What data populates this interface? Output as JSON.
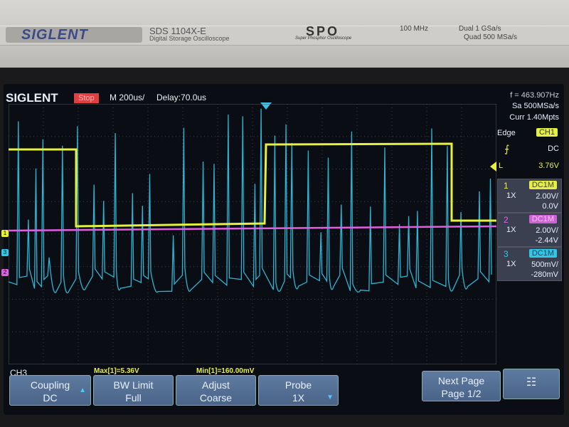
{
  "bezel": {
    "brand": "SIGLENT",
    "model": "SDS 1104X-E",
    "model_desc": "Digital Storage Oscilloscope",
    "spo_logo": "SPO",
    "spo_desc": "Super Phosphor Oscilloscope",
    "bandwidth": "100 MHz",
    "rate_dual": "Dual  1 GSa/s",
    "rate_quad": "Quad  500 MSa/s"
  },
  "top": {
    "brand": "SIGLENT",
    "status": "Stop",
    "timebase": "M 200us/",
    "delay": "Delay:70.0us"
  },
  "info": {
    "freq": "f = 463.907Hz",
    "sample_rate": "Sa 500MSa/s",
    "curr": "Curr 1.40Mpts",
    "trigger_type": "Edge",
    "trigger_source": "CH1",
    "trigger_coupling": "DC",
    "trigger_level_label": "L",
    "trigger_level": "3.76V"
  },
  "channels": [
    {
      "num": "1",
      "coupling": "DC1M",
      "probe": "1X",
      "scale": "2.00V/",
      "offset": "0.0V",
      "color": "#e6f040"
    },
    {
      "num": "2",
      "coupling": "DC1M",
      "probe": "1X",
      "scale": "2.00V/",
      "offset": "-2.44V",
      "color": "#e060e0"
    },
    {
      "num": "3",
      "coupling": "DC1M",
      "probe": "1X",
      "scale": "500mV/",
      "offset": "-280mV",
      "color": "#30c8e8"
    }
  ],
  "channel_markers": [
    "1",
    "2",
    "3"
  ],
  "bottom": {
    "menu_title": "CH3",
    "max": "Max[1]=5.36V",
    "min": "Min[1]=160.00mV"
  },
  "softkeys": [
    {
      "line1": "Coupling",
      "line2": "DC"
    },
    {
      "line1": "BW Limit",
      "line2": "Full"
    },
    {
      "line1": "Adjust",
      "line2": "Coarse"
    },
    {
      "line1": "Probe",
      "line2": "1X"
    },
    {
      "line1": "Next Page",
      "line2": "Page 1/2"
    }
  ],
  "icons": {
    "network": "network-icon",
    "trigger_edge": "rising-edge-icon"
  }
}
